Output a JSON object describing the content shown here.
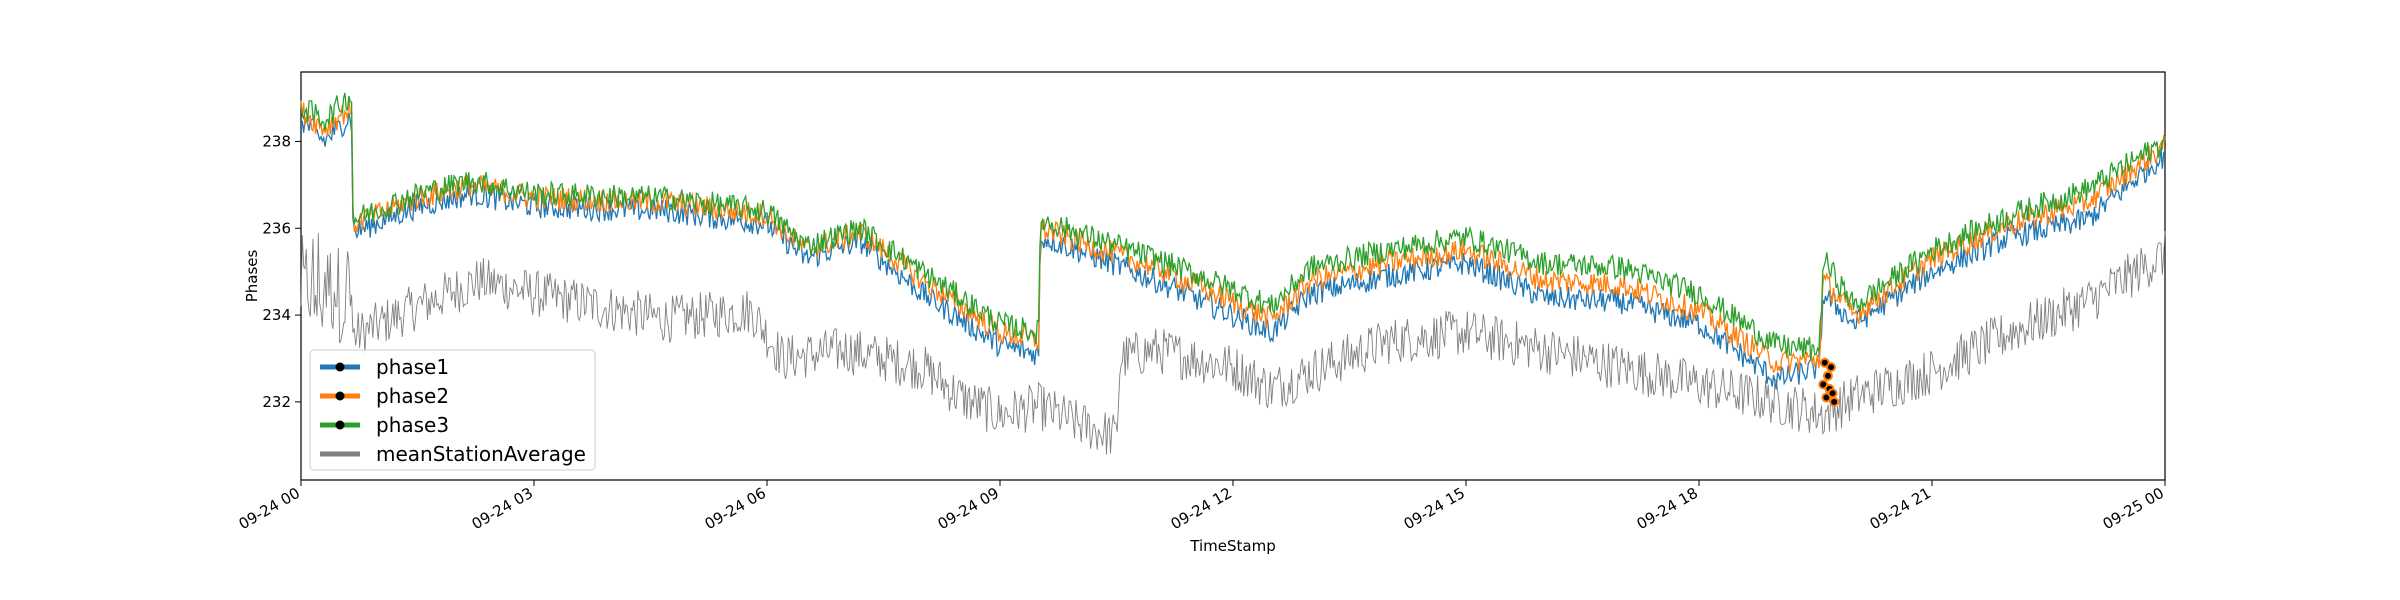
{
  "chart_data": {
    "type": "line",
    "title": "",
    "xlabel": "TimeStamp",
    "ylabel": "Phases",
    "xlim": [
      0,
      24
    ],
    "ylim": [
      230.2,
      239.6
    ],
    "x_ticks": [
      {
        "value": 0,
        "label": "09-24 00"
      },
      {
        "value": 3,
        "label": "09-24 03"
      },
      {
        "value": 6,
        "label": "09-24 06"
      },
      {
        "value": 9,
        "label": "09-24 09"
      },
      {
        "value": 12,
        "label": "09-24 12"
      },
      {
        "value": 15,
        "label": "09-24 15"
      },
      {
        "value": 18,
        "label": "09-24 18"
      },
      {
        "value": 21,
        "label": "09-24 21"
      },
      {
        "value": 24,
        "label": "09-25 00"
      }
    ],
    "y_ticks": [
      232,
      234,
      236,
      238
    ],
    "grid": false,
    "legend_position": "lower-left",
    "series": [
      {
        "name": "phase1",
        "color": "#1f77b4",
        "noise": 0.28,
        "x": [
          0,
          0.3,
          0.65,
          0.67,
          1.5,
          2.2,
          3,
          4.7,
          6,
          6.5,
          7.2,
          8,
          9,
          9.5,
          9.52,
          10,
          11,
          12,
          12.5,
          13,
          14,
          15,
          16,
          17,
          18,
          19,
          19.55,
          19.6,
          20,
          21,
          22,
          23,
          24
        ],
        "y": [
          238.5,
          238.0,
          238.6,
          235.9,
          236.5,
          236.8,
          236.5,
          236.4,
          236.1,
          235.3,
          235.7,
          234.5,
          233.3,
          233.1,
          235.8,
          235.5,
          234.8,
          234.0,
          233.6,
          234.5,
          234.9,
          235.2,
          234.4,
          234.3,
          233.8,
          232.5,
          232.8,
          234.5,
          233.8,
          235.0,
          235.8,
          236.2,
          237.7
        ]
      },
      {
        "name": "phase2",
        "color": "#ff7f0e",
        "noise": 0.28,
        "x": [
          0,
          0.3,
          0.65,
          0.67,
          1.5,
          2.2,
          3,
          4.7,
          6,
          6.5,
          7.2,
          8,
          9,
          9.5,
          9.52,
          10,
          11,
          12,
          12.5,
          13,
          14,
          15,
          16,
          17,
          18,
          19,
          19.55,
          19.6,
          20,
          21,
          22,
          23,
          24
        ],
        "y": [
          238.7,
          238.3,
          238.8,
          236.1,
          236.7,
          237.0,
          236.7,
          236.6,
          236.3,
          235.5,
          235.9,
          234.8,
          233.6,
          233.4,
          236.0,
          235.7,
          235.1,
          234.3,
          233.9,
          234.8,
          235.2,
          235.5,
          234.8,
          234.7,
          234.1,
          232.9,
          233.0,
          234.8,
          234.0,
          235.3,
          236.1,
          236.6,
          237.9
        ]
      },
      {
        "name": "phase3",
        "color": "#2ca02c",
        "noise": 0.28,
        "x": [
          0,
          0.3,
          0.65,
          0.67,
          1.5,
          2.2,
          3,
          4.7,
          6,
          6.5,
          7.2,
          8,
          9,
          9.5,
          9.52,
          10,
          11,
          12,
          12.5,
          13,
          14,
          15,
          16,
          17,
          18,
          19,
          19.55,
          19.6,
          20,
          21,
          22,
          23,
          24
        ],
        "y": [
          238.8,
          238.5,
          239.1,
          236.2,
          236.8,
          237.1,
          236.8,
          236.7,
          236.4,
          235.6,
          236.0,
          235.0,
          233.8,
          233.6,
          236.2,
          235.9,
          235.3,
          234.6,
          234.2,
          235.1,
          235.5,
          235.8,
          235.2,
          235.1,
          234.5,
          233.3,
          233.2,
          235.3,
          234.2,
          235.5,
          236.3,
          236.9,
          238.0
        ]
      },
      {
        "name": "meanStationAverage",
        "color": "#808080",
        "noise": 0.55,
        "x": [
          0,
          0.65,
          0.67,
          1.5,
          2.3,
          3,
          4.7,
          5.8,
          6.2,
          7,
          8,
          8.5,
          9,
          9.5,
          10,
          10.5,
          10.55,
          11,
          12,
          12.5,
          13,
          14,
          15,
          16,
          17,
          18,
          19,
          19.6,
          20,
          21,
          22,
          23,
          24
        ],
        "y": [
          234.5,
          234.6,
          233.5,
          234.2,
          234.8,
          234.5,
          233.9,
          234.1,
          233.0,
          233.2,
          232.8,
          232.1,
          231.7,
          231.9,
          231.5,
          231.2,
          233.0,
          233.2,
          232.8,
          232.3,
          232.7,
          233.4,
          233.6,
          233.2,
          232.8,
          232.4,
          232.0,
          231.7,
          232.1,
          232.7,
          233.6,
          234.3,
          235.4
        ]
      }
    ],
    "highlighted_points": {
      "color": "#ff7f0e",
      "marker_color": "#000000",
      "x": [
        19.6,
        19.62,
        19.64,
        19.66,
        19.68,
        19.7,
        19.72,
        19.74
      ],
      "y": [
        232.4,
        232.9,
        232.1,
        232.6,
        232.3,
        232.8,
        232.2,
        232.0
      ]
    }
  }
}
